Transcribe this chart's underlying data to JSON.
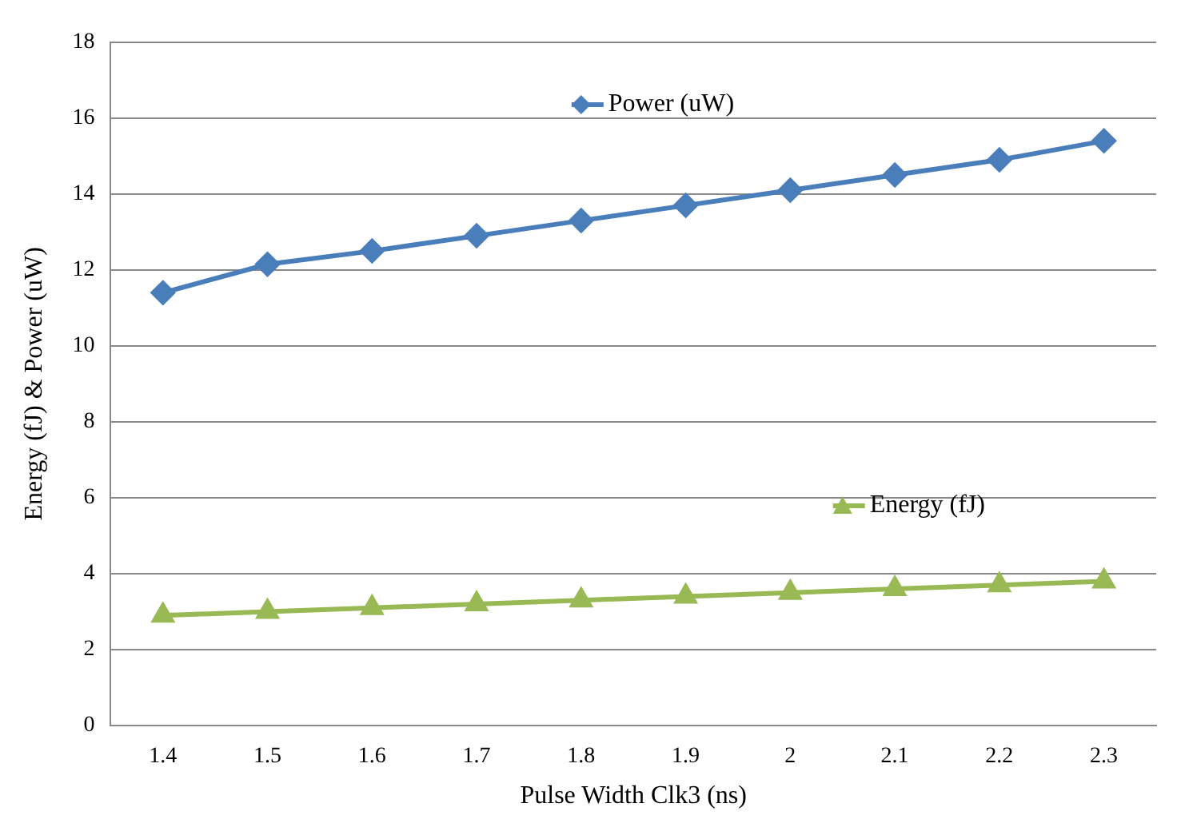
{
  "chart_data": {
    "type": "line",
    "xlabel": "Pulse Width Clk3 (ns)",
    "ylabel": "Energy (fJ) & Power (uW)",
    "categories": [
      "1.4",
      "1.5",
      "1.6",
      "1.7",
      "1.8",
      "1.9",
      "2",
      "2.1",
      "2.2",
      "2.3"
    ],
    "series": [
      {
        "name": "Power (uW)",
        "color": "#4a7ebb",
        "marker": "diamond",
        "values": [
          11.4,
          12.15,
          12.5,
          12.9,
          13.3,
          13.7,
          14.1,
          14.5,
          14.9,
          15.4
        ]
      },
      {
        "name": "Energy (fJ)",
        "color": "#98b954",
        "marker": "triangle",
        "values": [
          2.9,
          3.0,
          3.1,
          3.2,
          3.3,
          3.4,
          3.5,
          3.6,
          3.7,
          3.8
        ]
      }
    ],
    "ylim": [
      0,
      18
    ],
    "yticks": [
      0,
      2,
      4,
      6,
      8,
      10,
      12,
      14,
      16,
      18
    ],
    "grid": "y",
    "legend": "top",
    "line_style": "solid"
  }
}
